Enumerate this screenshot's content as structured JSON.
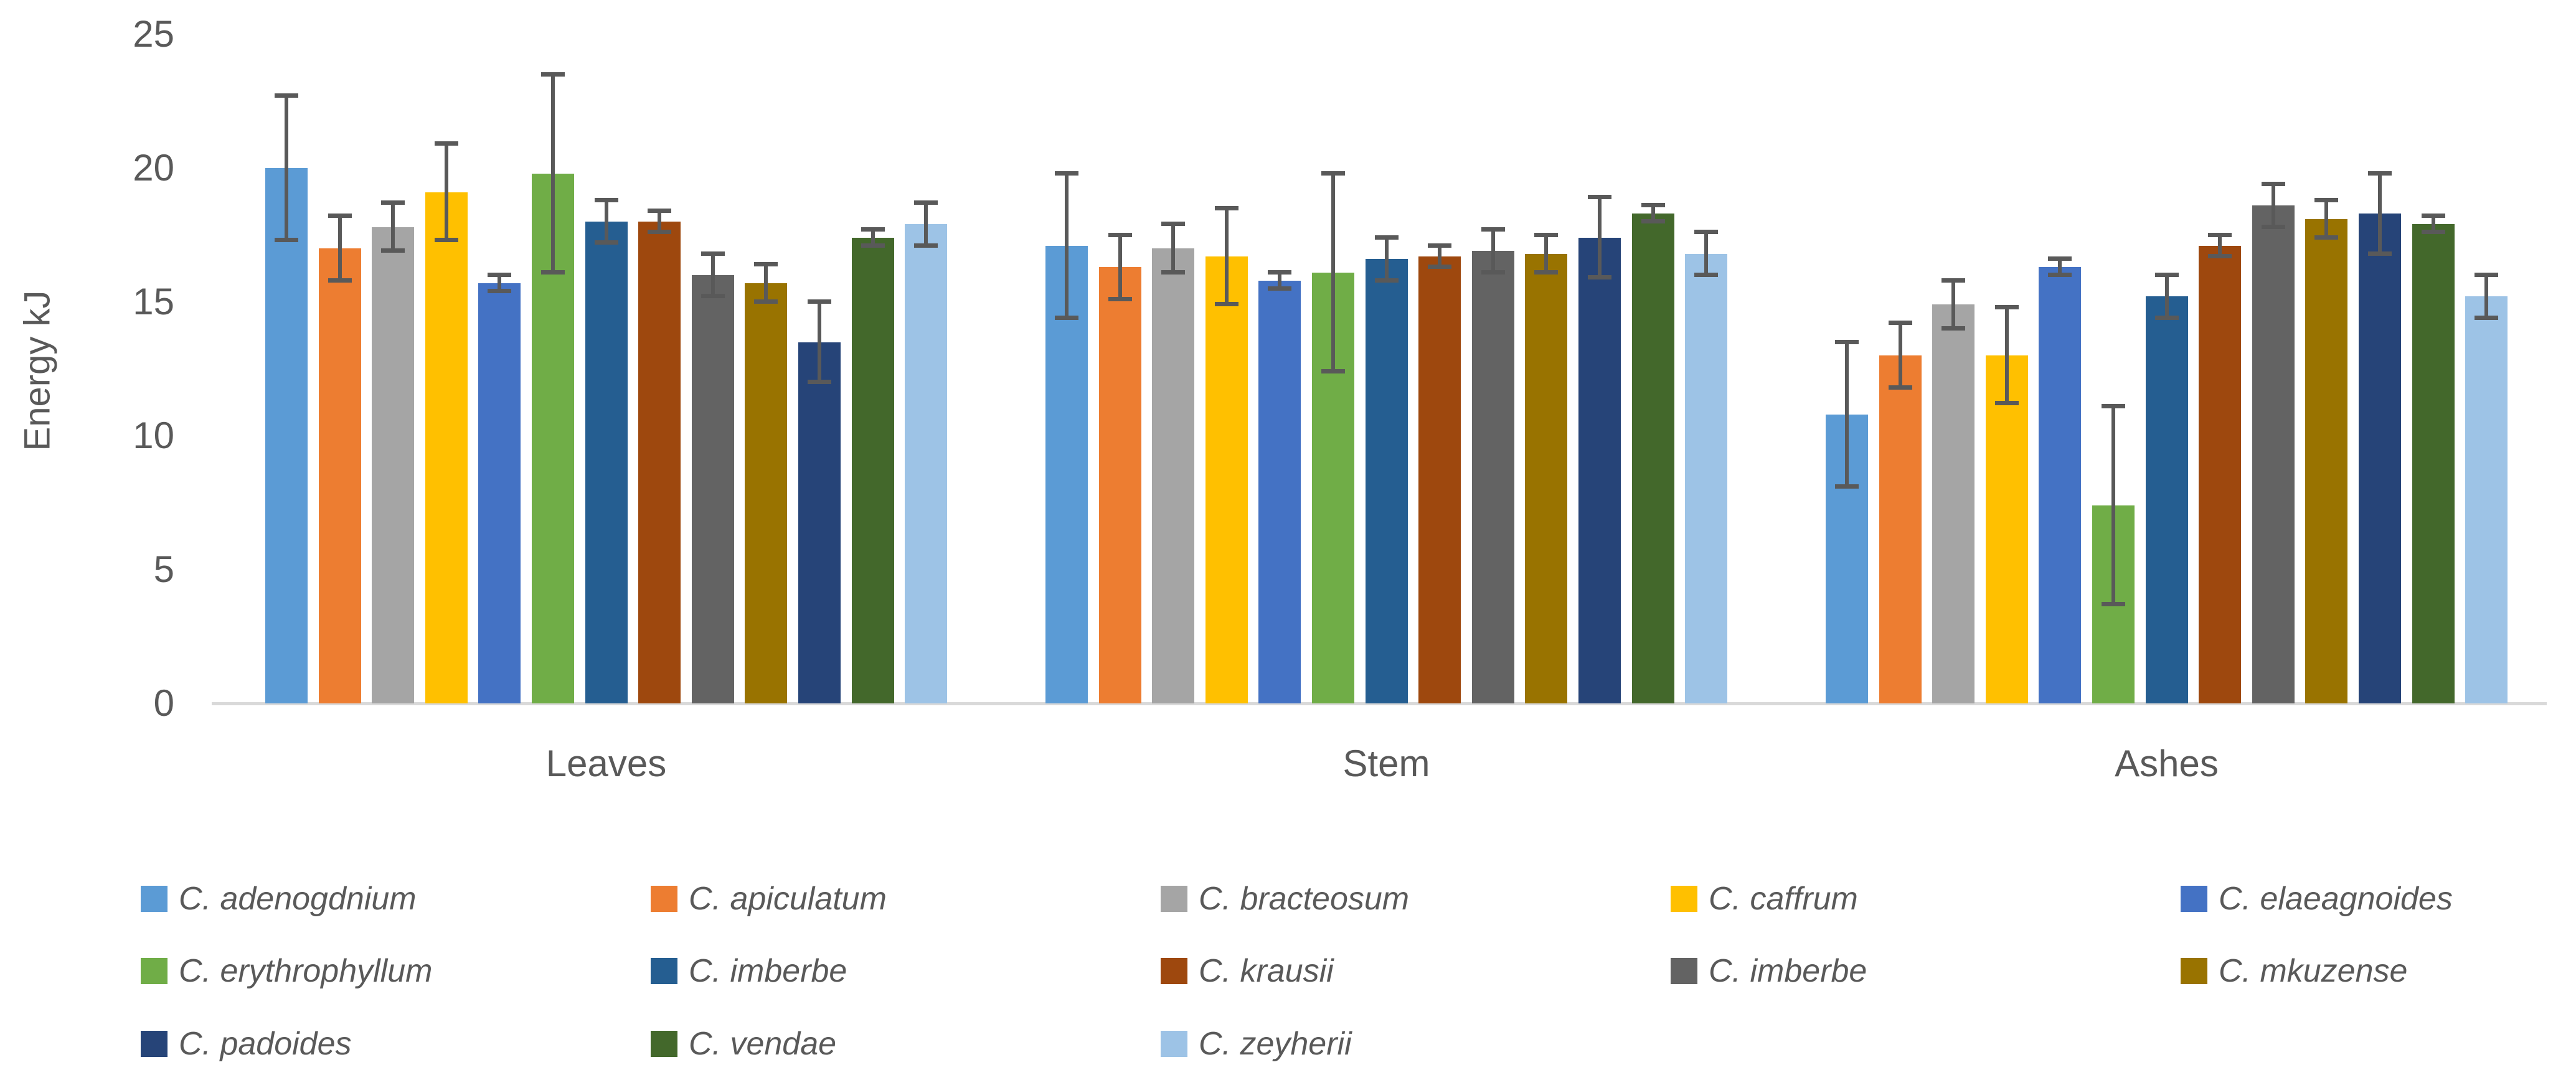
{
  "chart_data": {
    "type": "bar",
    "title": "",
    "xlabel": "",
    "ylabel": "Energy kJ",
    "ylim": [
      0,
      25
    ],
    "yticks": [
      0,
      5,
      10,
      15,
      20,
      25
    ],
    "grid": false,
    "legend_position": "bottom",
    "background_color": "#FFFFFF",
    "axis_line_color": "#D9D9D9",
    "text_color": "#595959",
    "error_bar_color": "#595959",
    "categories": [
      "Leaves",
      "Stem",
      "Ashes"
    ],
    "series": [
      {
        "name": "C. adenogdnium",
        "color": "#5B9BD5",
        "values": [
          20.0,
          17.1,
          10.8
        ],
        "error": 2.7
      },
      {
        "name": "C. apiculatum",
        "color": "#ED7D31",
        "values": [
          17.0,
          16.3,
          13.0
        ],
        "error": 1.2
      },
      {
        "name": "C. bracteosum",
        "color": "#A5A5A5",
        "values": [
          17.8,
          17.0,
          14.9
        ],
        "error": 0.9
      },
      {
        "name": "C. caffrum",
        "color": "#FFC000",
        "values": [
          19.1,
          16.7,
          13.0
        ],
        "error": 1.8
      },
      {
        "name": "C. elaeagnoides",
        "color": "#4472C4",
        "values": [
          15.7,
          15.8,
          16.3
        ],
        "error": 0.3
      },
      {
        "name": "C. erythrophyllum",
        "color": "#70AD47",
        "values": [
          19.8,
          16.1,
          7.4
        ],
        "error": 3.7
      },
      {
        "name": "C. imberbe",
        "color": "#255E91",
        "values": [
          18.0,
          16.6,
          15.2
        ],
        "error": 0.8
      },
      {
        "name": "C. krausii",
        "color": "#9E480E",
        "values": [
          18.0,
          16.7,
          17.1
        ],
        "error": 0.4
      },
      {
        "name": "C. imberbe",
        "color": "#636363",
        "values": [
          16.0,
          16.9,
          18.6
        ],
        "error": 0.8
      },
      {
        "name": "C. mkuzense",
        "color": "#997300",
        "values": [
          15.7,
          16.8,
          18.1
        ],
        "error": 0.7
      },
      {
        "name": "C. padoides",
        "color": "#264478",
        "values": [
          13.5,
          17.4,
          18.3
        ],
        "error": 1.5
      },
      {
        "name": "C. vendae",
        "color": "#43682B",
        "values": [
          17.4,
          18.3,
          17.9
        ],
        "error": 0.3
      },
      {
        "name": "C. zeyherii",
        "color": "#9DC3E6",
        "values": [
          17.9,
          16.8,
          15.2
        ],
        "error": 0.8
      }
    ]
  }
}
